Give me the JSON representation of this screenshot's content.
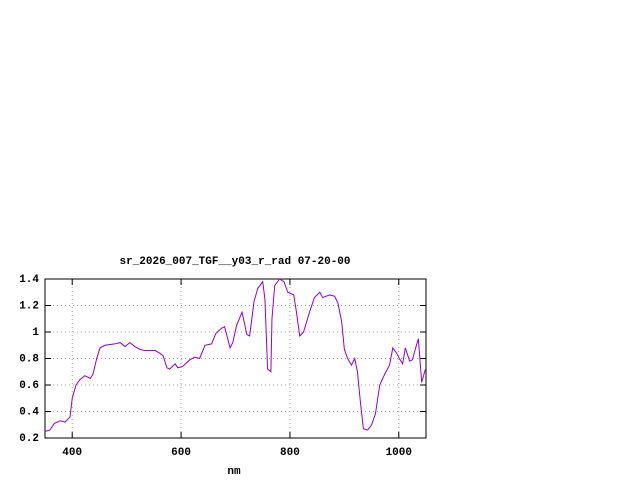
{
  "chart_data": {
    "type": "line",
    "title": "sr_2026_007_TGF__y03_r_rad 07-20-00",
    "x_label": "nm",
    "xlim": [
      350,
      1050
    ],
    "ylim": [
      0.2,
      1.4
    ],
    "xticks": [
      400,
      600,
      800,
      1000
    ],
    "yticks": [
      0.2,
      0.4,
      0.6,
      0.8,
      1,
      1.2,
      1.4
    ],
    "grid": true,
    "series": [
      {
        "color": "#9400d3",
        "x": [
          350,
          359,
          367,
          378,
          387,
          396,
          400,
          407,
          414,
          423,
          433,
          438,
          445,
          451,
          460,
          478,
          488,
          497,
          506,
          515,
          524,
          533,
          552,
          561,
          567,
          574,
          579,
          589,
          594,
          603,
          616,
          625,
          634,
          644,
          656,
          664,
          675,
          680,
          690,
          695,
          702,
          712,
          721,
          726,
          734,
          741,
          750,
          754,
          759,
          765,
          767,
          772,
          781,
          789,
          796,
          807,
          812,
          818,
          825,
          836,
          845,
          855,
          860,
          873,
          882,
          888,
          895,
          900,
          906,
          913,
          919,
          924,
          930,
          935,
          943,
          950,
          957,
          965,
          974,
          983,
          989,
          996,
          1001,
          1007,
          1012,
          1020,
          1025,
          1031,
          1036,
          1042,
          1049
        ],
        "values": [
          0.25,
          0.26,
          0.31,
          0.33,
          0.32,
          0.36,
          0.5,
          0.6,
          0.64,
          0.67,
          0.65,
          0.68,
          0.8,
          0.88,
          0.9,
          0.91,
          0.92,
          0.89,
          0.92,
          0.89,
          0.87,
          0.86,
          0.86,
          0.84,
          0.82,
          0.73,
          0.72,
          0.76,
          0.73,
          0.74,
          0.79,
          0.81,
          0.8,
          0.9,
          0.91,
          0.99,
          1.03,
          1.04,
          0.88,
          0.92,
          1.05,
          1.15,
          0.98,
          0.97,
          1.23,
          1.33,
          1.38,
          1.25,
          0.72,
          0.7,
          1.1,
          1.35,
          1.4,
          1.38,
          1.3,
          1.28,
          1.15,
          0.97,
          1.0,
          1.15,
          1.26,
          1.3,
          1.26,
          1.28,
          1.27,
          1.22,
          1.08,
          0.87,
          0.8,
          0.75,
          0.8,
          0.7,
          0.45,
          0.27,
          0.26,
          0.3,
          0.38,
          0.6,
          0.68,
          0.75,
          0.88,
          0.84,
          0.8,
          0.76,
          0.88,
          0.78,
          0.79,
          0.88,
          0.95,
          0.62,
          0.72
        ]
      }
    ]
  }
}
